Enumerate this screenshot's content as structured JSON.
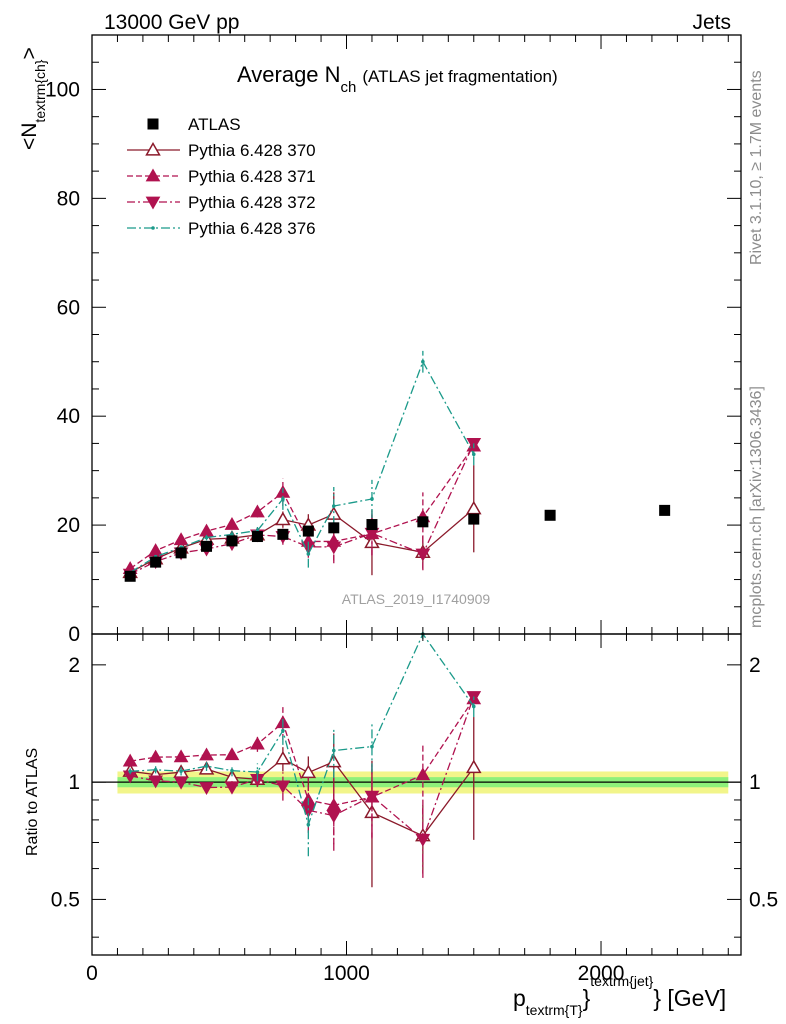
{
  "header": {
    "left": "13000 GeV pp",
    "right": "Jets"
  },
  "side_labels": {
    "rivet": "Rivet 3.1.10, ≥ 1.7M events",
    "mcplots": "mcplots.cern.ch [arXiv:1306.3436]"
  },
  "watermark": "ATLAS_2019_I1740909",
  "chart_data": {
    "type": "scatter",
    "title": "Average N",
    "title_sub": "ch",
    "title_paren": "(ATLAS jet fragmentation)",
    "xlabel": "p",
    "xlabel_sub": "textrm{T}",
    "xlabel_sup": "textrm{jet}",
    "xlabel_unit": "[GeV]",
    "ylabel": "<N",
    "ylabel_sub": "textrm{ch}",
    "ylabel_end": ">",
    "ratio_ylabel": "Ratio to ATLAS",
    "xlim": [
      0,
      2550
    ],
    "ylim": [
      0,
      110
    ],
    "ratio_ylim": [
      0.36,
      2.4
    ],
    "ratio_scale": "log",
    "x_ticks": [
      0,
      1000,
      2000
    ],
    "x_tick_labels": [
      "0",
      "1000",
      "2000"
    ],
    "y_ticks": [
      0,
      20,
      40,
      60,
      80,
      100
    ],
    "y_tick_labels": [
      "0",
      "20",
      "40",
      "60",
      "80",
      "100"
    ],
    "ratio_ticks": [
      0.5,
      1,
      2
    ],
    "ratio_tick_labels": [
      "0.5",
      "1",
      "2"
    ],
    "legend_position": "top-left",
    "x": [
      150,
      250,
      350,
      450,
      550,
      650,
      750,
      850,
      950,
      1100,
      1300,
      1500,
      1800,
      2250
    ],
    "data": {
      "name": "ATLAS",
      "color": "#000000",
      "y": [
        10.6,
        13.2,
        14.9,
        16.1,
        17.1,
        17.9,
        18.3,
        18.9,
        19.5,
        20.1,
        20.6,
        21.1,
        21.8,
        22.7
      ]
    },
    "series": [
      {
        "name": "Pythia 6.428 370",
        "color": "#8b1a2b",
        "marker": "triangle-up-open",
        "dash": "",
        "y": [
          11.3,
          13.8,
          15.8,
          17.4,
          17.6,
          18.2,
          21.0,
          20.0,
          22.0,
          16.8,
          15.0,
          23.0
        ],
        "err": [
          0.2,
          0.3,
          0.4,
          0.5,
          0.6,
          0.8,
          1.5,
          2.0,
          4.0,
          6.0,
          3.0,
          8.0
        ]
      },
      {
        "name": "Pythia 6.428 371",
        "color": "#b0124f",
        "marker": "triangle-up",
        "dash": "6,3",
        "y": [
          12.0,
          15.3,
          17.3,
          18.9,
          20.1,
          22.4,
          26.0,
          17.0,
          17.0,
          18.4,
          21.5,
          34.5
        ],
        "err": [
          0.2,
          0.3,
          0.4,
          0.5,
          0.6,
          1.0,
          2.5,
          2.5,
          3.5,
          4.0,
          4.5,
          0
        ]
      },
      {
        "name": "Pythia 6.428 372",
        "color": "#b0124f",
        "marker": "triangle-down",
        "dash": "8,3,2,3",
        "y": [
          11.0,
          13.3,
          14.9,
          15.6,
          16.6,
          18.2,
          17.9,
          16.0,
          16.0,
          18.5,
          14.7,
          35.0
        ],
        "err": [
          0.2,
          0.3,
          0.4,
          0.5,
          0.6,
          0.8,
          1.5,
          2.0,
          3.0,
          4.0,
          3.0,
          0
        ]
      },
      {
        "name": "Pythia 6.428 376",
        "color": "#1b9a8a",
        "marker": "dot",
        "dash": "9,3,2,3",
        "y": [
          11.3,
          14.2,
          15.9,
          17.7,
          18.3,
          19.0,
          24.8,
          14.7,
          23.5,
          24.8,
          50.0,
          33.0
        ],
        "err": [
          0.2,
          0.3,
          0.4,
          0.5,
          0.6,
          1.0,
          2.0,
          2.5,
          3.5,
          3.5,
          2.0,
          2.0
        ]
      }
    ]
  }
}
